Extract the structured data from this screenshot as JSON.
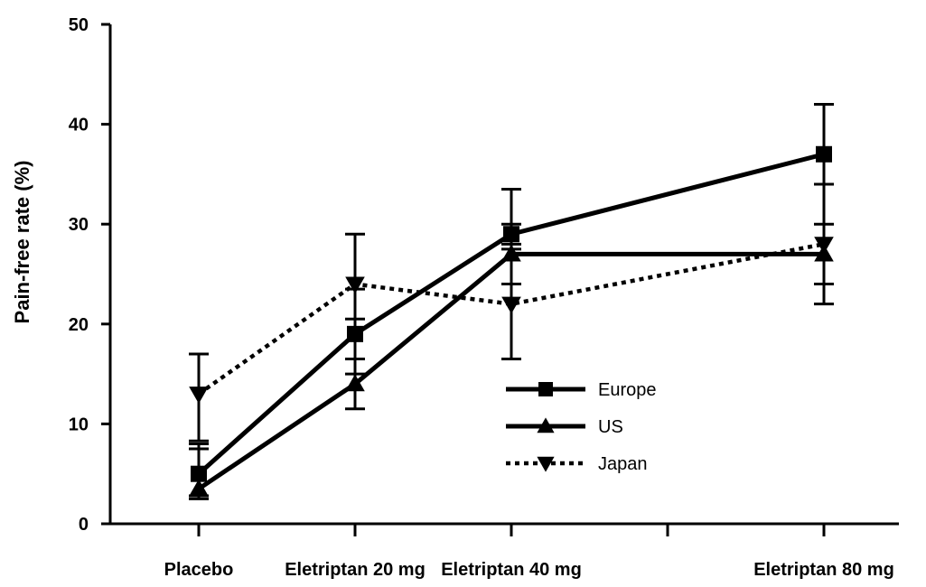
{
  "chart_data": {
    "type": "line",
    "title": "",
    "xlabel": "",
    "ylabel": "Pain-free rate (%)",
    "ylim": [
      0,
      50
    ],
    "yticks": [
      0,
      10,
      20,
      30,
      40,
      50
    ],
    "categories": [
      "Placebo",
      "Eletriptan 20 mg",
      "Eletriptan 40 mg",
      "Eletriptan 80 mg"
    ],
    "x_positions": [
      1,
      2,
      3,
      5
    ],
    "x_ticks": [
      1,
      2,
      3,
      4,
      5
    ],
    "grid": false,
    "legend": "center-right",
    "series": [
      {
        "name": "Europe",
        "style": "solid",
        "marker": "square",
        "values": [
          5,
          19,
          29,
          37
        ],
        "error": [
          {
            "low": 2.5,
            "high": 8
          },
          {
            "low": 15,
            "high": 23.5
          },
          {
            "low": 28,
            "high": 33.5
          },
          {
            "low": 34,
            "high": 42
          }
        ]
      },
      {
        "name": "US",
        "style": "solid",
        "marker": "triangle-up",
        "values": [
          3.5,
          14,
          27,
          27
        ],
        "error": [
          {
            "low": 2.8,
            "high": 7.5
          },
          {
            "low": 11.5,
            "high": 16.5
          },
          {
            "low": 24,
            "high": 30
          },
          {
            "low": 24,
            "high": 30
          }
        ]
      },
      {
        "name": "Japan",
        "style": "dotted",
        "marker": "triangle-down",
        "values": [
          13,
          24,
          22,
          28
        ],
        "error": [
          {
            "low": 8.3,
            "high": 17
          },
          {
            "low": 20.5,
            "high": 29
          },
          {
            "low": 16.5,
            "high": 27.5
          },
          {
            "low": 22,
            "high": 34
          }
        ]
      }
    ]
  }
}
